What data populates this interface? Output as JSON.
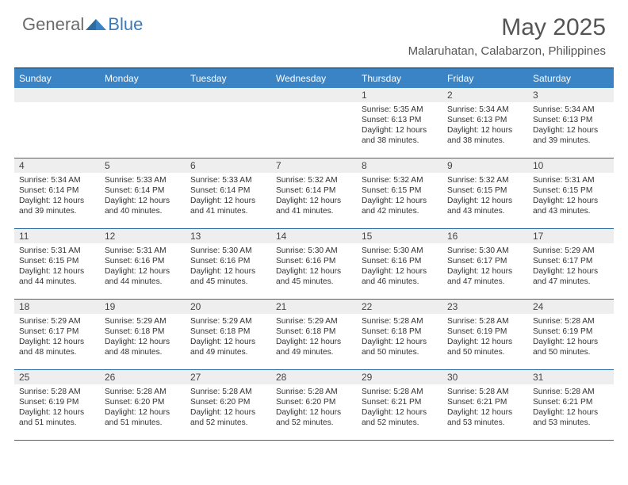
{
  "logo": {
    "text_general": "General",
    "text_blue": "Blue"
  },
  "title": "May 2025",
  "location": "Malaruhatan, Calabarzon, Philippines",
  "colors": {
    "header_bg": "#3a83c4",
    "header_border": "#2b6ca3",
    "daynum_bg": "#eeeeee",
    "text": "#333333",
    "logo_gray": "#6b6b6b",
    "logo_blue": "#3a7ab8",
    "title_color": "#555555"
  },
  "day_names": [
    "Sunday",
    "Monday",
    "Tuesday",
    "Wednesday",
    "Thursday",
    "Friday",
    "Saturday"
  ],
  "weeks": [
    [
      null,
      null,
      null,
      null,
      {
        "n": "1",
        "sr": "5:35 AM",
        "ss": "6:13 PM",
        "dl": "12 hours and 38 minutes."
      },
      {
        "n": "2",
        "sr": "5:34 AM",
        "ss": "6:13 PM",
        "dl": "12 hours and 38 minutes."
      },
      {
        "n": "3",
        "sr": "5:34 AM",
        "ss": "6:13 PM",
        "dl": "12 hours and 39 minutes."
      }
    ],
    [
      {
        "n": "4",
        "sr": "5:34 AM",
        "ss": "6:14 PM",
        "dl": "12 hours and 39 minutes."
      },
      {
        "n": "5",
        "sr": "5:33 AM",
        "ss": "6:14 PM",
        "dl": "12 hours and 40 minutes."
      },
      {
        "n": "6",
        "sr": "5:33 AM",
        "ss": "6:14 PM",
        "dl": "12 hours and 41 minutes."
      },
      {
        "n": "7",
        "sr": "5:32 AM",
        "ss": "6:14 PM",
        "dl": "12 hours and 41 minutes."
      },
      {
        "n": "8",
        "sr": "5:32 AM",
        "ss": "6:15 PM",
        "dl": "12 hours and 42 minutes."
      },
      {
        "n": "9",
        "sr": "5:32 AM",
        "ss": "6:15 PM",
        "dl": "12 hours and 43 minutes."
      },
      {
        "n": "10",
        "sr": "5:31 AM",
        "ss": "6:15 PM",
        "dl": "12 hours and 43 minutes."
      }
    ],
    [
      {
        "n": "11",
        "sr": "5:31 AM",
        "ss": "6:15 PM",
        "dl": "12 hours and 44 minutes."
      },
      {
        "n": "12",
        "sr": "5:31 AM",
        "ss": "6:16 PM",
        "dl": "12 hours and 44 minutes."
      },
      {
        "n": "13",
        "sr": "5:30 AM",
        "ss": "6:16 PM",
        "dl": "12 hours and 45 minutes."
      },
      {
        "n": "14",
        "sr": "5:30 AM",
        "ss": "6:16 PM",
        "dl": "12 hours and 45 minutes."
      },
      {
        "n": "15",
        "sr": "5:30 AM",
        "ss": "6:16 PM",
        "dl": "12 hours and 46 minutes."
      },
      {
        "n": "16",
        "sr": "5:30 AM",
        "ss": "6:17 PM",
        "dl": "12 hours and 47 minutes."
      },
      {
        "n": "17",
        "sr": "5:29 AM",
        "ss": "6:17 PM",
        "dl": "12 hours and 47 minutes."
      }
    ],
    [
      {
        "n": "18",
        "sr": "5:29 AM",
        "ss": "6:17 PM",
        "dl": "12 hours and 48 minutes."
      },
      {
        "n": "19",
        "sr": "5:29 AM",
        "ss": "6:18 PM",
        "dl": "12 hours and 48 minutes."
      },
      {
        "n": "20",
        "sr": "5:29 AM",
        "ss": "6:18 PM",
        "dl": "12 hours and 49 minutes."
      },
      {
        "n": "21",
        "sr": "5:29 AM",
        "ss": "6:18 PM",
        "dl": "12 hours and 49 minutes."
      },
      {
        "n": "22",
        "sr": "5:28 AM",
        "ss": "6:18 PM",
        "dl": "12 hours and 50 minutes."
      },
      {
        "n": "23",
        "sr": "5:28 AM",
        "ss": "6:19 PM",
        "dl": "12 hours and 50 minutes."
      },
      {
        "n": "24",
        "sr": "5:28 AM",
        "ss": "6:19 PM",
        "dl": "12 hours and 50 minutes."
      }
    ],
    [
      {
        "n": "25",
        "sr": "5:28 AM",
        "ss": "6:19 PM",
        "dl": "12 hours and 51 minutes."
      },
      {
        "n": "26",
        "sr": "5:28 AM",
        "ss": "6:20 PM",
        "dl": "12 hours and 51 minutes."
      },
      {
        "n": "27",
        "sr": "5:28 AM",
        "ss": "6:20 PM",
        "dl": "12 hours and 52 minutes."
      },
      {
        "n": "28",
        "sr": "5:28 AM",
        "ss": "6:20 PM",
        "dl": "12 hours and 52 minutes."
      },
      {
        "n": "29",
        "sr": "5:28 AM",
        "ss": "6:21 PM",
        "dl": "12 hours and 52 minutes."
      },
      {
        "n": "30",
        "sr": "5:28 AM",
        "ss": "6:21 PM",
        "dl": "12 hours and 53 minutes."
      },
      {
        "n": "31",
        "sr": "5:28 AM",
        "ss": "6:21 PM",
        "dl": "12 hours and 53 minutes."
      }
    ]
  ],
  "labels": {
    "sunrise": "Sunrise:",
    "sunset": "Sunset:",
    "daylight": "Daylight:"
  }
}
